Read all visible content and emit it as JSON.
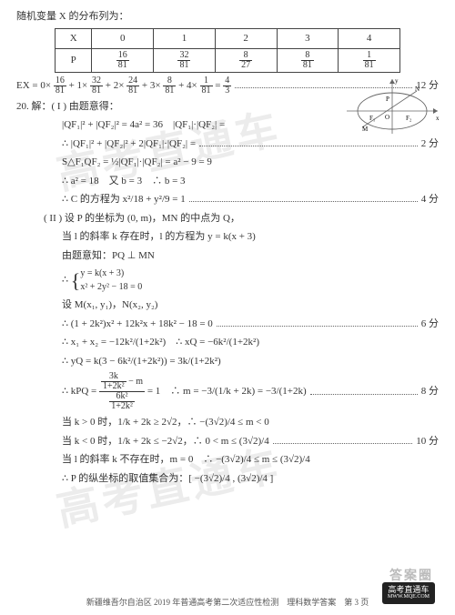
{
  "watermark_text": "高考直通车",
  "intro_line": "随机变量 X 的分布列为：",
  "table": {
    "headers": [
      "X",
      "0",
      "1",
      "2",
      "3",
      "4"
    ],
    "row_label": "P",
    "fractions": [
      {
        "num": "16",
        "den": "81"
      },
      {
        "num": "32",
        "den": "81"
      },
      {
        "num": "8",
        "den": "27"
      },
      {
        "num": "8",
        "den": "81"
      },
      {
        "num": "1",
        "den": "81"
      }
    ]
  },
  "ex_line": {
    "prefix": "EX = 0×",
    "terms": [
      {
        "num": "16",
        "den": "81"
      },
      {
        "t": " + 1×"
      },
      {
        "num": "32",
        "den": "81"
      },
      {
        "t": " + 2×"
      },
      {
        "num": "24",
        "den": "81"
      },
      {
        "t": " + 3×"
      },
      {
        "num": "8",
        "den": "81"
      },
      {
        "t": " + 4×"
      },
      {
        "num": "1",
        "den": "81"
      },
      {
        "t": " = "
      },
      {
        "num": "4",
        "den": "3"
      }
    ],
    "score": "12 分"
  },
  "q20_header": "20. 解：( I ) 由题意得：",
  "partI": [
    {
      "t": "|QF₁|² + |QF₂|² = 4a² = 36　|QF₁|·|QF₂| = "
    },
    {
      "t": "∴ |QF₁|² + |QF₂|² + 2|QF₁|·|QF₂| = ",
      "dots": true,
      "score": "2 分"
    },
    {
      "t": "S△F₁QF₂ = ½|QF₁|·|QF₂| = a² − 9 = 9"
    },
    {
      "t": "∴ a² = 18　又 b = 3　∴ b = 3"
    },
    {
      "t": "∴ C 的方程为 x²/18 + y²/9 = 1",
      "dots": true,
      "score": "4 分"
    }
  ],
  "partII_header": "( II ) 设 P 的坐标为 (0, m)，MN 的中点为 Q，",
  "partII": [
    {
      "t": "当 l 的斜率 k 存在时，l 的方程为 y = k(x + 3)"
    },
    {
      "t": "由题意知：PQ ⊥ MN"
    },
    {
      "brace": true,
      "l1": "y = k(x + 3)",
      "l2": "x² + 2y² − 18 = 0"
    },
    {
      "t": "设 M(x₁, y₁)，N(x₂, y₂)"
    },
    {
      "t": "∴ (1 + 2k²)x² + 12k²x + 18k² − 18 = 0",
      "dots": true,
      "score": "6 分"
    },
    {
      "t": "∴ x₁ + x₂ = −12k²/(1+2k²)　∴ xQ = −6k²/(1+2k²)"
    },
    {
      "t": "∴ yQ = k(3 − 6k²/(1+2k²)) = 3k/(1+2k²)"
    },
    {
      "kpq": true,
      "score": "8 分"
    },
    {
      "t": "当 k > 0 时，1/k + 2k ≥ 2√2，∴ −(3√2)/4 ≤ m < 0"
    },
    {
      "t": "当 k < 0 时，1/k + 2k ≤ −2√2，∴ 0 < m ≤ (3√2)/4",
      "dots": true,
      "score": "10 分"
    },
    {
      "t": "当 l 的斜率 k 不存在时，m = 0　∴ −(3√2)/4 ≤ m ≤ (3√2)/4"
    },
    {
      "t": "∴ P 的纵坐标的取值集合为：[ −(3√2)/4 , (3√2)/4 ]"
    }
  ],
  "kpq_detail": {
    "left_top": "3k",
    "left_mid": "1+2k²",
    "minus": "− m",
    "bottom": "6k²",
    "bottom2": "1+2k²",
    "eq1": "= 1",
    "rhs": "∴ m = −3/(1/k + 2k) = −3/(1+2k)",
    "label": "∴ kPQ ="
  },
  "diagram_labels": {
    "F1": "F₁",
    "F2": "F₂",
    "M": "M",
    "N": "N",
    "P": "P",
    "x": "x",
    "y": "y",
    "O": "O"
  },
  "answer_stamp": "答案圈",
  "footer_logo_top": "高考直通车",
  "footer_logo_bottom": "MWW.MQE.COM",
  "footer_text": "新疆维吾尔自治区 2019 年普通高考第二次适应性检测　理科数学答案　第 3 页"
}
